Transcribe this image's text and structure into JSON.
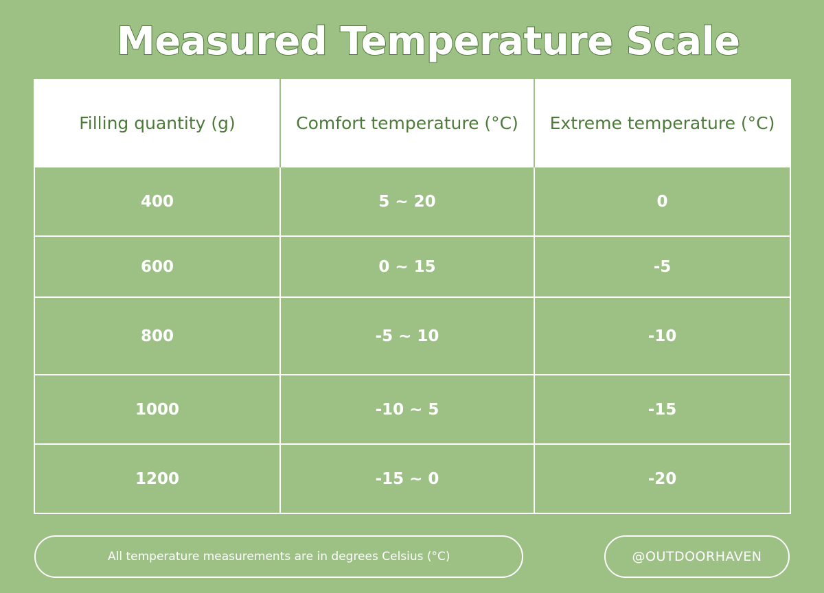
{
  "title": "Measured Temperature Scale",
  "table": {
    "headers": [
      "Filling quantity (g)",
      "Comfort temperature (°C)",
      "Extreme temperature (°C)"
    ],
    "rows": [
      [
        "400",
        "5 ~ 20",
        "0"
      ],
      [
        "600",
        "0 ~ 15",
        "-5"
      ],
      [
        "800",
        "-5 ~ 10",
        "-10"
      ],
      [
        "1000",
        "-10 ~ 5",
        "-15"
      ],
      [
        "1200",
        "-15 ~ 0",
        "-20"
      ]
    ]
  },
  "footer": {
    "note": "All temperature measurements are in degrees Celsius (°C)",
    "handle": "@OUTDOORHAVEN"
  },
  "colors": {
    "background": "#9dc185",
    "header_text": "#4d7a3a",
    "cell_text": "#ffffff"
  }
}
